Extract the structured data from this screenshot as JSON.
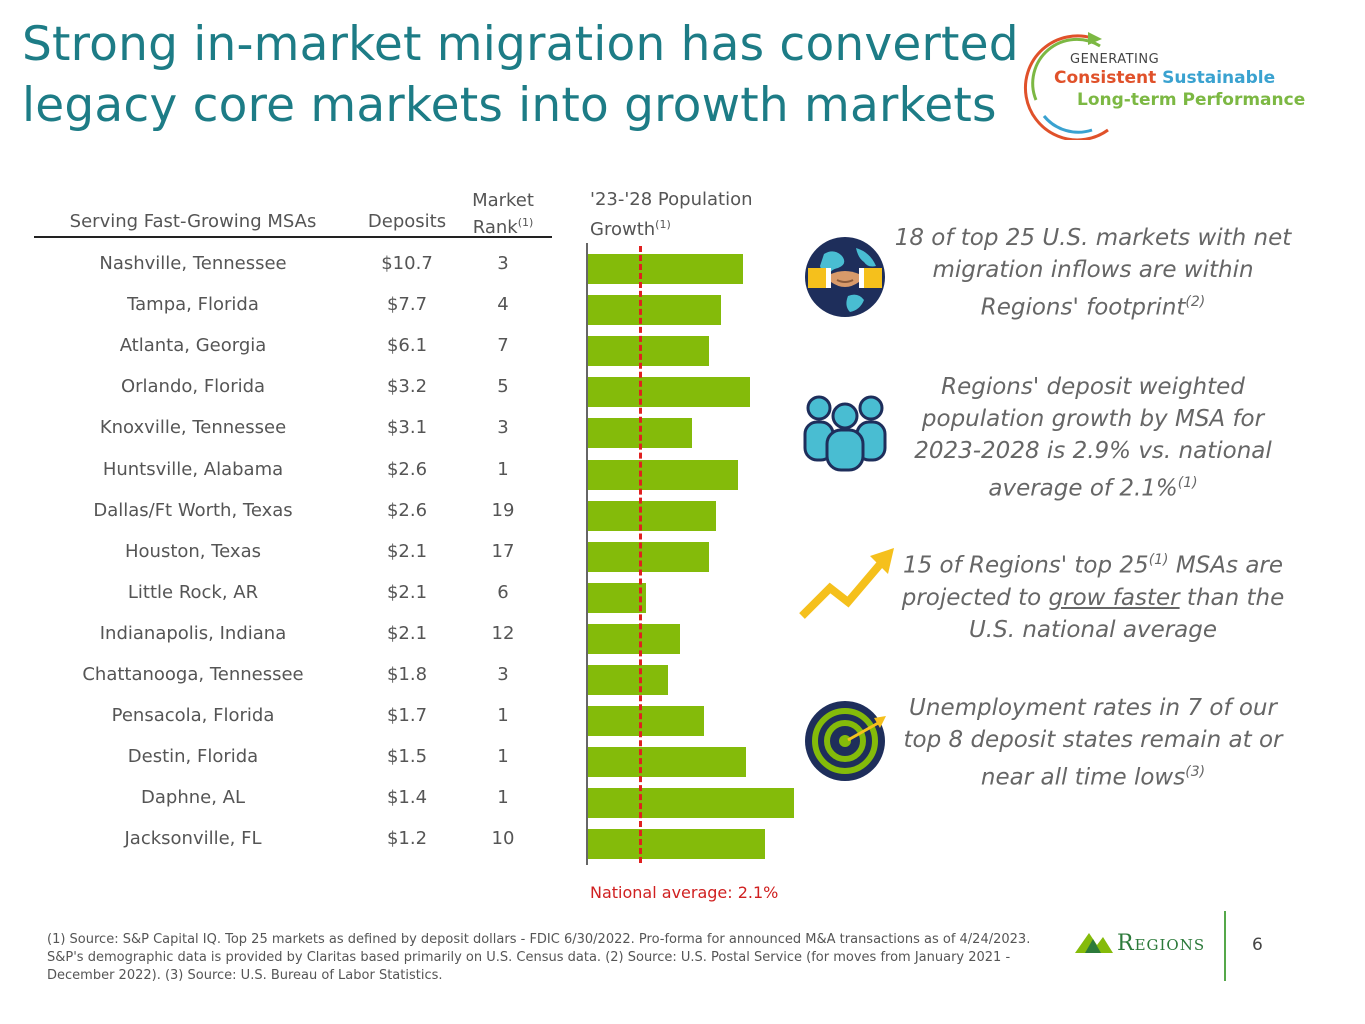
{
  "title": "Strong in-market migration has converted legacy core markets into growth markets",
  "logo": {
    "generating": "GENERATING",
    "consistent": "Consistent",
    "sustainable": "Sustainable",
    "long_term": "Long-term Performance"
  },
  "table": {
    "header_msa": "Serving Fast-Growing MSAs",
    "header_deposits": "Deposits",
    "header_rank_line1": "Market",
    "header_rank_line2": "Rank",
    "header_rank_note": "(1)",
    "rows": [
      {
        "msa": "Nashville, Tennessee",
        "deposits": "$10.7",
        "rank": "3"
      },
      {
        "msa": "Tampa, Florida",
        "deposits": "$7.7",
        "rank": "4"
      },
      {
        "msa": "Atlanta, Georgia",
        "deposits": "$6.1",
        "rank": "7"
      },
      {
        "msa": "Orlando, Florida",
        "deposits": "$3.2",
        "rank": "5"
      },
      {
        "msa": "Knoxville, Tennessee",
        "deposits": "$3.1",
        "rank": "3"
      },
      {
        "msa": "Huntsville, Alabama",
        "deposits": "$2.6",
        "rank": "1"
      },
      {
        "msa": "Dallas/Ft Worth, Texas",
        "deposits": "$2.6",
        "rank": "19"
      },
      {
        "msa": "Houston, Texas",
        "deposits": "$2.1",
        "rank": "17"
      },
      {
        "msa": "Little Rock, AR",
        "deposits": "$2.1",
        "rank": "6"
      },
      {
        "msa": "Indianapolis, Indiana",
        "deposits": "$2.1",
        "rank": "12"
      },
      {
        "msa": "Chattanooga, Tennessee",
        "deposits": "$1.8",
        "rank": "3"
      },
      {
        "msa": "Pensacola, Florida",
        "deposits": "$1.7",
        "rank": "1"
      },
      {
        "msa": "Destin, Florida",
        "deposits": "$1.5",
        "rank": "1"
      },
      {
        "msa": "Daphne, AL",
        "deposits": "$1.4",
        "rank": "1"
      },
      {
        "msa": "Jacksonville, FL",
        "deposits": "$1.2",
        "rank": "10"
      }
    ]
  },
  "chart_data": {
    "type": "bar",
    "title": "'23-'28 Population Growth",
    "title_line1": "'23-'28 Population",
    "title_line2": "Growth",
    "title_note": "(1)",
    "categories": [
      "Nashville, Tennessee",
      "Tampa, Florida",
      "Atlanta, Georgia",
      "Orlando, Florida",
      "Knoxville, Tennessee",
      "Huntsville, Alabama",
      "Dallas/Ft Worth, Texas",
      "Houston, Texas",
      "Little Rock, AR",
      "Indianapolis, Indiana",
      "Chattanooga, Tennessee",
      "Pensacola, Florida",
      "Destin, Florida",
      "Daphne, AL",
      "Jacksonville, FL"
    ],
    "values": [
      6.4,
      5.5,
      5.0,
      6.7,
      4.3,
      6.2,
      5.3,
      5.0,
      2.4,
      3.8,
      3.3,
      4.8,
      6.5,
      8.5,
      7.3
    ],
    "reference_line": {
      "value": 2.1,
      "label": "National average: 2.1%"
    },
    "xlim": [
      0,
      8.5
    ],
    "units": "%"
  },
  "stats": [
    {
      "text": "18 of top 25 U.S. markets with net migration inflows are within Regions' footprint",
      "note": "(2)"
    },
    {
      "text": "Regions' deposit weighted population growth by MSA for 2023-2028 is 2.9% vs. national average of 2.1%",
      "note": "(1)"
    },
    {
      "pre": "15 of Regions' top 25",
      "note1": "(1)",
      "mid": " MSAs are projected to ",
      "underlined": "grow faster",
      "post": " than the U.S. national average"
    },
    {
      "text": "Unemployment rates in 7 of our top 8 deposit states remain at or near all time lows",
      "note": "(3)"
    }
  ],
  "footnote": "(1) Source: S&P Capital IQ. Top 25 markets as defined by deposit dollars - FDIC 6/30/2022. Pro-forma for announced M&A transactions as of 4/24/2023. S&P's demographic data is provided by Claritas based primarily on U.S. Census data. (2) Source:  U.S. Postal Service (for moves from January 2021 - December 2022).  (3) Source: U.S. Bureau of Labor Statistics.",
  "brand": "Regions",
  "page_number": "6",
  "colors": {
    "title": "#1d7c86",
    "bar": "#84bb0a",
    "national_line": "#e02020",
    "icon_navy": "#1e2e5b",
    "icon_teal": "#49bdd2",
    "icon_yellow": "#f5c01c",
    "brand_green": "#2c7a3a"
  }
}
